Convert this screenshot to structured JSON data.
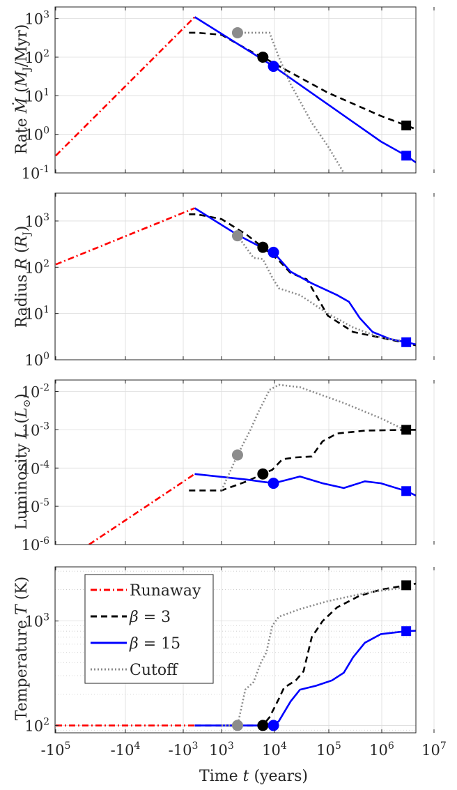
{
  "figure": {
    "xlabel": "Time t (years)",
    "xticks": [
      "-10^5",
      "-10^4",
      "-10^3",
      "10^3",
      "10^4",
      "10^5",
      "10^6",
      "10^7"
    ]
  },
  "colors": {
    "runaway": "#ff0000",
    "beta3": "#000000",
    "beta15": "#0000ff",
    "cutoff": "#8c8c8c"
  },
  "chart_data": [
    {
      "type": "line",
      "ylabel": "Rate Ṁ (M_J/Myr)",
      "yscale": "log",
      "ylim": [
        0.1,
        2000
      ],
      "yticks": [
        [
          "10",
          "-1"
        ],
        [
          "10",
          "0"
        ],
        [
          "10",
          "1"
        ],
        [
          "10",
          "2"
        ],
        [
          "10",
          "3"
        ]
      ],
      "series": [
        {
          "name": "Runaway",
          "points": [
            [
              -100000,
              0.28
            ],
            [
              -400,
              1100
            ]
          ]
        },
        {
          "name": "β = 3",
          "points": [
            [
              -700,
              430
            ],
            [
              -300,
              430
            ],
            [
              1000,
              380
            ],
            [
              2000,
              220
            ],
            [
              4000,
              130
            ],
            [
              6000,
              100
            ],
            [
              20000,
              40
            ],
            [
              100000,
              12
            ],
            [
              1000000,
              3
            ],
            [
              3000000,
              1.7
            ],
            [
              5000000,
              1.3
            ]
          ]
        },
        {
          "name": "β = 15",
          "points": [
            [
              -400,
              1100
            ],
            [
              9500,
              58
            ],
            [
              100000,
              6
            ],
            [
              1000000,
              0.65
            ],
            [
              3000000,
              0.28
            ],
            [
              5000000,
              0.17
            ]
          ]
        },
        {
          "name": "Cutoff",
          "points": [
            [
              2000,
              430
            ],
            [
              8000,
              430
            ],
            [
              12000,
              100
            ],
            [
              20000,
              20
            ],
            [
              50000,
              2
            ],
            [
              100000,
              0.5
            ],
            [
              200000,
              0.1
            ]
          ]
        }
      ],
      "markers": [
        {
          "series": "Cutoff",
          "shape": "circle",
          "x": 2000,
          "y": 430
        },
        {
          "series": "β = 3",
          "shape": "circle",
          "x": 6000,
          "y": 100
        },
        {
          "series": "β = 15",
          "shape": "circle",
          "x": 9500,
          "y": 58
        },
        {
          "series": "β = 3",
          "shape": "square",
          "x": 3000000,
          "y": 1.7
        },
        {
          "series": "β = 15",
          "shape": "square",
          "x": 3000000,
          "y": 0.28
        }
      ]
    },
    {
      "type": "line",
      "ylabel": "Radius R (R_J)",
      "yscale": "log",
      "ylim": [
        1,
        4000
      ],
      "yticks": [
        [
          "10",
          "0"
        ],
        [
          "10",
          "1"
        ],
        [
          "10",
          "2"
        ],
        [
          "10",
          "3"
        ]
      ],
      "series": [
        {
          "name": "Runaway",
          "points": [
            [
              -100000,
              115
            ],
            [
              -400,
              1900
            ]
          ]
        },
        {
          "name": "β = 3",
          "points": [
            [
              -700,
              1400
            ],
            [
              -300,
              1400
            ],
            [
              1000,
              1100
            ],
            [
              3000,
              500
            ],
            [
              6000,
              270
            ],
            [
              12000,
              140
            ],
            [
              20000,
              75
            ],
            [
              40000,
              55
            ],
            [
              60000,
              25
            ],
            [
              100000,
              9
            ],
            [
              300000,
              4
            ],
            [
              1000000,
              3
            ],
            [
              3000000,
              2.3
            ],
            [
              5000000,
              2
            ]
          ]
        },
        {
          "name": "β = 15",
          "points": [
            [
              -400,
              1900
            ],
            [
              2000,
              500
            ],
            [
              6000,
              260
            ],
            [
              9500,
              210
            ],
            [
              20000,
              80
            ],
            [
              50000,
              45
            ],
            [
              150000,
              25
            ],
            [
              250000,
              18
            ],
            [
              400000,
              8
            ],
            [
              700000,
              4
            ],
            [
              1500000,
              2.8
            ],
            [
              3000000,
              2.4
            ],
            [
              5000000,
              2.1
            ]
          ]
        },
        {
          "name": "Cutoff",
          "points": [
            [
              2000,
              480
            ],
            [
              4000,
              160
            ],
            [
              6000,
              150
            ],
            [
              9000,
              60
            ],
            [
              12000,
              35
            ],
            [
              30000,
              25
            ],
            [
              100000,
              10
            ],
            [
              300000,
              5
            ],
            [
              1000000,
              3
            ],
            [
              3000000,
              2.5
            ]
          ]
        }
      ],
      "markers": [
        {
          "series": "Cutoff",
          "shape": "circle",
          "x": 2000,
          "y": 480
        },
        {
          "series": "β = 3",
          "shape": "circle",
          "x": 6000,
          "y": 270
        },
        {
          "series": "β = 15",
          "shape": "circle",
          "x": 9500,
          "y": 210
        },
        {
          "series": "β = 15",
          "shape": "square",
          "x": 3000000,
          "y": 2.4
        }
      ]
    },
    {
      "type": "line",
      "ylabel": "Luminosity L (L_⊙)",
      "yscale": "log",
      "ylim": [
        1e-06,
        0.02
      ],
      "yticks": [
        [
          "10",
          "-6"
        ],
        [
          "10",
          "-5"
        ],
        [
          "10",
          "-4"
        ],
        [
          "10",
          "-3"
        ],
        [
          "10",
          "-2"
        ]
      ],
      "series": [
        {
          "name": "Runaway",
          "points": [
            [
              -30000,
              1e-06
            ],
            [
              -400,
              7e-05
            ]
          ]
        },
        {
          "name": "β = 3",
          "points": [
            [
              -700,
              2.6e-05
            ],
            [
              -200,
              2.6e-05
            ],
            [
              1000,
              2.6e-05
            ],
            [
              3000,
              4.5e-05
            ],
            [
              6000,
              7e-05
            ],
            [
              9000,
              9e-05
            ],
            [
              14000,
              0.00017
            ],
            [
              25000,
              0.00019
            ],
            [
              50000,
              0.0002
            ],
            [
              80000,
              0.0005
            ],
            [
              150000,
              0.0008
            ],
            [
              500000,
              0.00095
            ],
            [
              3000000,
              0.001
            ],
            [
              5000000,
              0.001
            ]
          ]
        },
        {
          "name": "β = 15",
          "points": [
            [
              -400,
              7e-05
            ],
            [
              3000,
              5e-05
            ],
            [
              9500,
              4e-05
            ],
            [
              18000,
              5e-05
            ],
            [
              30000,
              6e-05
            ],
            [
              80000,
              4e-05
            ],
            [
              200000,
              3e-05
            ],
            [
              500000,
              4.5e-05
            ],
            [
              1000000,
              4e-05
            ],
            [
              3000000,
              2.5e-05
            ],
            [
              5000000,
              1.8e-05
            ]
          ]
        },
        {
          "name": "Cutoff",
          "points": [
            [
              1000,
              2.6e-05
            ],
            [
              2000,
              0.00022
            ],
            [
              3500,
              0.001
            ],
            [
              5000,
              0.003
            ],
            [
              8000,
              0.011
            ],
            [
              12000,
              0.015
            ],
            [
              30000,
              0.013
            ],
            [
              200000,
              0.005
            ],
            [
              1000000,
              0.002
            ],
            [
              3000000,
              0.00095
            ]
          ]
        }
      ],
      "markers": [
        {
          "series": "Cutoff",
          "shape": "circle",
          "x": 2000,
          "y": 0.00022
        },
        {
          "series": "β = 3",
          "shape": "circle",
          "x": 6000,
          "y": 7e-05
        },
        {
          "series": "β = 15",
          "shape": "circle",
          "x": 9500,
          "y": 4e-05
        },
        {
          "series": "β = 3",
          "shape": "square",
          "x": 3000000,
          "y": 0.001
        },
        {
          "series": "β = 15",
          "shape": "square",
          "x": 3000000,
          "y": 2.5e-05
        }
      ]
    },
    {
      "type": "line",
      "ylabel": "Temperature T (K)",
      "yscale": "log",
      "ylim": [
        85,
        3300
      ],
      "yticks": [
        [
          "10",
          "2"
        ],
        [
          "10",
          "3"
        ]
      ],
      "series": [
        {
          "name": "Runaway",
          "points": [
            [
              -100000,
              100
            ],
            [
              -400,
              100
            ]
          ]
        },
        {
          "name": "β = 3",
          "points": [
            [
              -400,
              100
            ],
            [
              6000,
              100
            ],
            [
              8000,
              120
            ],
            [
              12000,
              180
            ],
            [
              15000,
              230
            ],
            [
              25000,
              270
            ],
            [
              35000,
              330
            ],
            [
              50000,
              700
            ],
            [
              80000,
              1000
            ],
            [
              150000,
              1350
            ],
            [
              400000,
              1750
            ],
            [
              1000000,
              2000
            ],
            [
              3000000,
              2200
            ],
            [
              5000000,
              2300
            ]
          ]
        },
        {
          "name": "β = 15",
          "points": [
            [
              -400,
              100
            ],
            [
              9500,
              100
            ],
            [
              12000,
              110
            ],
            [
              20000,
              170
            ],
            [
              30000,
              220
            ],
            [
              60000,
              240
            ],
            [
              120000,
              270
            ],
            [
              200000,
              320
            ],
            [
              300000,
              450
            ],
            [
              500000,
              620
            ],
            [
              1000000,
              750
            ],
            [
              3000000,
              800
            ],
            [
              5000000,
              810
            ]
          ]
        },
        {
          "name": "Cutoff",
          "points": [
            [
              1000,
              100
            ],
            [
              2000,
              100
            ],
            [
              2800,
              220
            ],
            [
              4000,
              260
            ],
            [
              5500,
              400
            ],
            [
              7000,
              500
            ],
            [
              9000,
              900
            ],
            [
              12000,
              1100
            ],
            [
              30000,
              1300
            ],
            [
              100000,
              1550
            ],
            [
              500000,
              1850
            ],
            [
              2000000,
              2050
            ],
            [
              3000000,
              2100
            ]
          ]
        }
      ],
      "markers": [
        {
          "series": "Cutoff",
          "shape": "circle",
          "x": 2000,
          "y": 100
        },
        {
          "series": "β = 3",
          "shape": "circle",
          "x": 6000,
          "y": 100
        },
        {
          "series": "β = 15",
          "shape": "circle",
          "x": 9500,
          "y": 100
        },
        {
          "series": "β = 3",
          "shape": "square",
          "x": 3000000,
          "y": 2200
        },
        {
          "series": "β = 15",
          "shape": "square",
          "x": 3000000,
          "y": 800
        }
      ],
      "legend": {
        "placement": "top-left",
        "entries": [
          "Runaway",
          "β = 3",
          "β = 15",
          "Cutoff"
        ]
      }
    }
  ]
}
